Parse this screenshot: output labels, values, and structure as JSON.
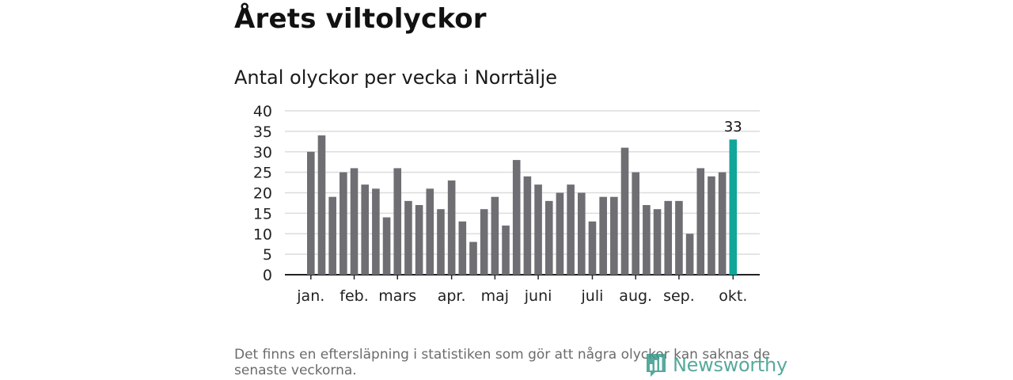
{
  "title": "Årets viltolyckor",
  "subtitle": "Antal olyckor per vecka i Norrtälje",
  "footnote": "Det finns en eftersläpning i statistiken som gör att några olyckor kan saknas de senaste veckorna.",
  "logo": {
    "text": "Newsworthy",
    "icon": "newsworthy-logo-icon"
  },
  "colors": {
    "bar": "#6e6e73",
    "highlight": "#11a69a",
    "grid": "#dcdcdc",
    "axis": "#222222",
    "logo": "#3a9b8c"
  },
  "chart_data": {
    "type": "bar",
    "title": "Antal olyckor per vecka i Norrtälje",
    "xlabel": "",
    "ylabel": "",
    "ylim": [
      0,
      40
    ],
    "yticks": [
      0,
      5,
      10,
      15,
      20,
      25,
      30,
      35,
      40
    ],
    "grid": true,
    "values": [
      30,
      34,
      19,
      25,
      26,
      22,
      21,
      14,
      26,
      18,
      17,
      21,
      16,
      23,
      13,
      8,
      16,
      19,
      12,
      28,
      24,
      22,
      18,
      20,
      22,
      20,
      13,
      19,
      19,
      31,
      25,
      17,
      16,
      18,
      18,
      10,
      26,
      24,
      25,
      33
    ],
    "highlight_index": 39,
    "highlight_label": "33",
    "month_labels": [
      {
        "label": "jan.",
        "bar_index": 0
      },
      {
        "label": "feb.",
        "bar_index": 4
      },
      {
        "label": "mars",
        "bar_index": 8
      },
      {
        "label": "apr.",
        "bar_index": 13
      },
      {
        "label": "maj",
        "bar_index": 17
      },
      {
        "label": "juni",
        "bar_index": 21
      },
      {
        "label": "juli",
        "bar_index": 26
      },
      {
        "label": "aug.",
        "bar_index": 30
      },
      {
        "label": "sep.",
        "bar_index": 34
      },
      {
        "label": "okt.",
        "bar_index": 39
      }
    ]
  }
}
